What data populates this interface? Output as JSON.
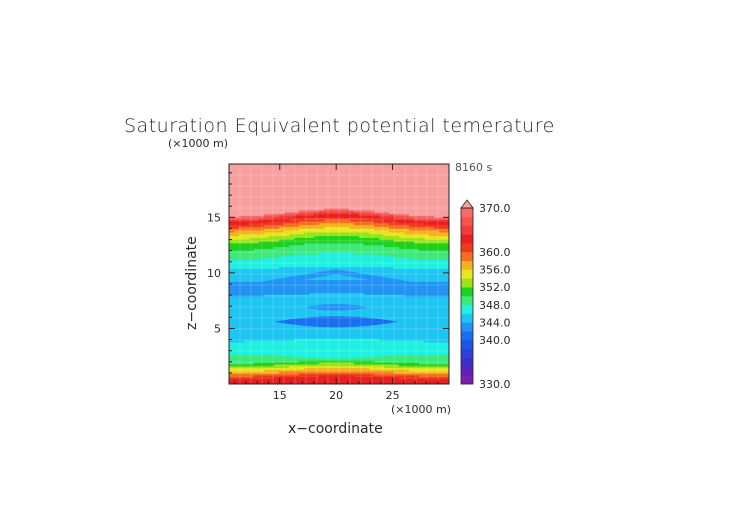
{
  "chart_data": {
    "type": "heatmap",
    "title": "Saturation Equivalent potential temerature",
    "time_label": "8160 s",
    "xlabel": "x−coordinate",
    "ylabel": "z−coordinate",
    "x_unit": "(×1000 m)",
    "z_unit": "(×1000 m)",
    "xlim": [
      10.5,
      30
    ],
    "ylim": [
      0,
      19.8
    ],
    "x_ticks": [
      15,
      20,
      25
    ],
    "y_ticks": [
      5,
      10,
      15
    ],
    "colorbar": {
      "range": [
        330,
        370
      ],
      "tick_values": [
        370,
        360,
        356,
        352,
        348,
        344,
        340,
        330
      ],
      "tick_labels": [
        "370.0",
        "360.0",
        "356.0",
        "352.0",
        "348.0",
        "344.0",
        "340.0",
        "330.0"
      ],
      "extend": "max",
      "over_color": "#f7a0a0"
    },
    "z_profile": [
      {
        "z": 0.5,
        "value": 363
      },
      {
        "z": 1.2,
        "value": 357
      },
      {
        "z": 2.0,
        "value": 350
      },
      {
        "z": 2.7,
        "value": 348
      },
      {
        "z": 3.6,
        "value": 347
      },
      {
        "z": 4.6,
        "value": 344.5
      },
      {
        "z": 6.2,
        "value": 344
      },
      {
        "z": 7.8,
        "value": 344.5
      },
      {
        "z": 8.6,
        "value": 343
      },
      {
        "z": 10.0,
        "value": 345
      },
      {
        "z": 11.0,
        "value": 347
      },
      {
        "z": 12.0,
        "value": 349
      },
      {
        "z": 12.8,
        "value": 351
      },
      {
        "z": 13.6,
        "value": 355
      },
      {
        "z": 14.3,
        "value": 359
      },
      {
        "z": 15.0,
        "value": 364
      },
      {
        "z": 15.5,
        "value": 371
      },
      {
        "z": 19.8,
        "value": 375
      }
    ],
    "features": [
      {
        "type": "arc",
        "x_center": 20,
        "z_center": 10.1,
        "x_halfwidth": 9.5,
        "z_drop": 1.6,
        "thickness": 0.45,
        "value": 342.5
      },
      {
        "type": "lens",
        "x_center": 20,
        "z_center": 5.6,
        "x_halfwidth": 5.5,
        "z_halfheight": 0.5,
        "value": 341.5
      },
      {
        "type": "lens",
        "x_center": 20,
        "z_center": 6.9,
        "x_halfwidth": 2.8,
        "z_halfheight": 0.3,
        "value": 342.5
      },
      {
        "type": "lens",
        "x_center": 20,
        "z_center": 2.8,
        "x_halfwidth": 7.0,
        "z_halfheight": 0.5,
        "value": 346
      }
    ]
  }
}
